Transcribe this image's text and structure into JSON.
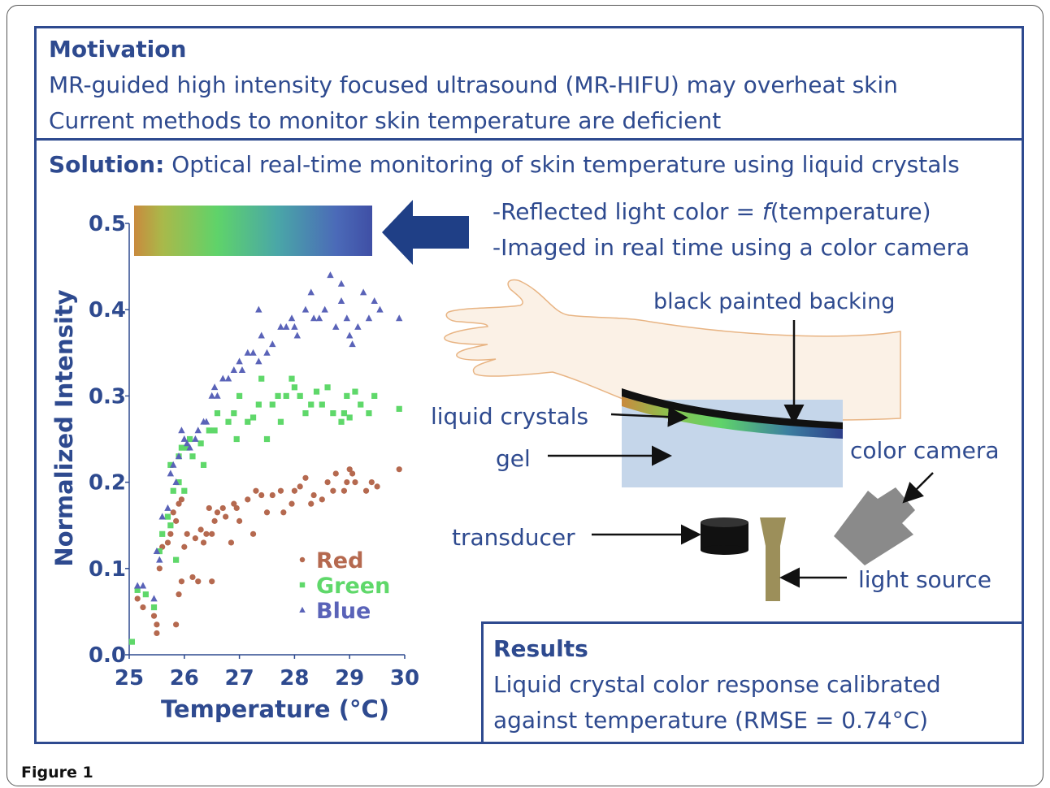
{
  "motivation": {
    "heading": "Motivation",
    "line1": "MR-guided high intensity focused ultrasound (MR-HIFU) may overheat skin",
    "line2": "Current methods to monitor skin temperature are deficient"
  },
  "solution": {
    "heading": "Solution:",
    "text": "Optical real-time monitoring of skin temperature using liquid crystals"
  },
  "bullets": {
    "b1_prefix": "-Reflected light color = ",
    "b1_f": "f",
    "b1_suffix": "(temperature)",
    "b2": "-Imaged in real time using a color camera"
  },
  "diagram": {
    "backing": "black painted backing",
    "liquid_crystals": "liquid crystals",
    "gel": "gel",
    "camera": "color camera",
    "transducer": "transducer",
    "light_source": "light source"
  },
  "results": {
    "heading": "Results",
    "line1": "Liquid crystal color response calibrated",
    "line2": "against temperature (RMSE = 0.74°C)"
  },
  "caption": "Figure 1",
  "colors": {
    "accent": "#2e4a8f",
    "red": "#b5694f",
    "green": "#5fd86a",
    "blue": "#5a63b8",
    "arrow": "#1f3f86"
  },
  "chart_data": {
    "type": "scatter",
    "xlabel": "Temperature (°C)",
    "ylabel": "Normalized Intensity",
    "xlim": [
      25,
      30
    ],
    "ylim": [
      0,
      0.5
    ],
    "xticks": [
      "25",
      "26",
      "27",
      "28",
      "29",
      "30"
    ],
    "yticks": [
      "0.0",
      "0.1",
      "0.2",
      "0.3",
      "0.4",
      "0.5"
    ],
    "legend_position": "lower-right",
    "series": [
      {
        "name": "Red",
        "marker": "circle",
        "points": [
          [
            25.05,
            0.015
          ],
          [
            25.15,
            0.065
          ],
          [
            25.25,
            0.055
          ],
          [
            25.45,
            0.045
          ],
          [
            25.5,
            0.025
          ],
          [
            25.5,
            0.035
          ],
          [
            25.55,
            0.1
          ],
          [
            25.6,
            0.125
          ],
          [
            25.7,
            0.13
          ],
          [
            25.75,
            0.14
          ],
          [
            25.8,
            0.165
          ],
          [
            25.85,
            0.155
          ],
          [
            25.85,
            0.035
          ],
          [
            25.9,
            0.175
          ],
          [
            25.9,
            0.07
          ],
          [
            25.95,
            0.18
          ],
          [
            25.95,
            0.085
          ],
          [
            26.0,
            0.125
          ],
          [
            26.05,
            0.14
          ],
          [
            26.15,
            0.09
          ],
          [
            26.2,
            0.135
          ],
          [
            26.25,
            0.085
          ],
          [
            26.3,
            0.145
          ],
          [
            26.35,
            0.13
          ],
          [
            26.4,
            0.14
          ],
          [
            26.45,
            0.17
          ],
          [
            26.5,
            0.085
          ],
          [
            26.5,
            0.14
          ],
          [
            26.55,
            0.155
          ],
          [
            26.6,
            0.165
          ],
          [
            26.7,
            0.17
          ],
          [
            26.75,
            0.16
          ],
          [
            26.85,
            0.13
          ],
          [
            26.9,
            0.175
          ],
          [
            26.95,
            0.17
          ],
          [
            27.0,
            0.155
          ],
          [
            27.15,
            0.18
          ],
          [
            27.25,
            0.14
          ],
          [
            27.3,
            0.19
          ],
          [
            27.4,
            0.185
          ],
          [
            27.5,
            0.165
          ],
          [
            27.6,
            0.185
          ],
          [
            27.75,
            0.19
          ],
          [
            27.8,
            0.165
          ],
          [
            27.95,
            0.175
          ],
          [
            28.0,
            0.19
          ],
          [
            28.1,
            0.195
          ],
          [
            28.2,
            0.205
          ],
          [
            28.3,
            0.175
          ],
          [
            28.35,
            0.185
          ],
          [
            28.5,
            0.18
          ],
          [
            28.6,
            0.2
          ],
          [
            28.7,
            0.19
          ],
          [
            28.75,
            0.21
          ],
          [
            28.9,
            0.19
          ],
          [
            28.95,
            0.2
          ],
          [
            29.0,
            0.215
          ],
          [
            29.05,
            0.21
          ],
          [
            29.1,
            0.2
          ],
          [
            29.3,
            0.19
          ],
          [
            29.4,
            0.2
          ],
          [
            29.5,
            0.195
          ],
          [
            29.9,
            0.215
          ]
        ]
      },
      {
        "name": "Green",
        "marker": "square",
        "points": [
          [
            25.05,
            0.015
          ],
          [
            25.15,
            0.075
          ],
          [
            25.3,
            0.07
          ],
          [
            25.45,
            0.055
          ],
          [
            25.55,
            0.12
          ],
          [
            25.6,
            0.14
          ],
          [
            25.7,
            0.16
          ],
          [
            25.75,
            0.15
          ],
          [
            25.75,
            0.22
          ],
          [
            25.8,
            0.19
          ],
          [
            25.85,
            0.11
          ],
          [
            25.9,
            0.2
          ],
          [
            25.9,
            0.23
          ],
          [
            25.95,
            0.24
          ],
          [
            26.0,
            0.19
          ],
          [
            26.05,
            0.24
          ],
          [
            26.1,
            0.25
          ],
          [
            26.15,
            0.23
          ],
          [
            26.3,
            0.245
          ],
          [
            26.35,
            0.22
          ],
          [
            26.45,
            0.26
          ],
          [
            26.55,
            0.26
          ],
          [
            26.6,
            0.28
          ],
          [
            26.8,
            0.27
          ],
          [
            26.9,
            0.28
          ],
          [
            26.95,
            0.25
          ],
          [
            27.0,
            0.3
          ],
          [
            27.15,
            0.27
          ],
          [
            27.25,
            0.275
          ],
          [
            27.35,
            0.29
          ],
          [
            27.4,
            0.32
          ],
          [
            27.5,
            0.25
          ],
          [
            27.6,
            0.29
          ],
          [
            27.7,
            0.3
          ],
          [
            27.75,
            0.27
          ],
          [
            27.85,
            0.3
          ],
          [
            27.95,
            0.32
          ],
          [
            28.0,
            0.31
          ],
          [
            28.1,
            0.3
          ],
          [
            28.2,
            0.28
          ],
          [
            28.3,
            0.29
          ],
          [
            28.4,
            0.305
          ],
          [
            28.5,
            0.29
          ],
          [
            28.6,
            0.31
          ],
          [
            28.7,
            0.28
          ],
          [
            28.85,
            0.27
          ],
          [
            28.9,
            0.28
          ],
          [
            28.95,
            0.3
          ],
          [
            29.0,
            0.275
          ],
          [
            29.1,
            0.305
          ],
          [
            29.2,
            0.29
          ],
          [
            29.35,
            0.28
          ],
          [
            29.45,
            0.3
          ],
          [
            29.9,
            0.285
          ]
        ]
      },
      {
        "name": "Blue",
        "marker": "triangle",
        "points": [
          [
            25.15,
            0.08
          ],
          [
            25.25,
            0.08
          ],
          [
            25.45,
            0.065
          ],
          [
            25.5,
            0.12
          ],
          [
            25.55,
            0.11
          ],
          [
            25.6,
            0.16
          ],
          [
            25.7,
            0.17
          ],
          [
            25.75,
            0.21
          ],
          [
            25.8,
            0.22
          ],
          [
            25.85,
            0.2
          ],
          [
            25.9,
            0.23
          ],
          [
            25.95,
            0.26
          ],
          [
            26.0,
            0.25
          ],
          [
            26.05,
            0.245
          ],
          [
            26.1,
            0.24
          ],
          [
            26.2,
            0.25
          ],
          [
            26.25,
            0.26
          ],
          [
            26.35,
            0.27
          ],
          [
            26.4,
            0.27
          ],
          [
            26.5,
            0.3
          ],
          [
            26.55,
            0.31
          ],
          [
            26.6,
            0.3
          ],
          [
            26.7,
            0.32
          ],
          [
            26.8,
            0.32
          ],
          [
            26.9,
            0.33
          ],
          [
            27.0,
            0.34
          ],
          [
            27.05,
            0.33
          ],
          [
            27.15,
            0.35
          ],
          [
            27.25,
            0.35
          ],
          [
            27.35,
            0.34
          ],
          [
            27.4,
            0.37
          ],
          [
            27.5,
            0.35
          ],
          [
            27.6,
            0.36
          ],
          [
            27.75,
            0.38
          ],
          [
            27.85,
            0.38
          ],
          [
            27.95,
            0.39
          ],
          [
            28.0,
            0.38
          ],
          [
            28.05,
            0.37
          ],
          [
            28.2,
            0.4
          ],
          [
            28.3,
            0.42
          ],
          [
            28.35,
            0.39
          ],
          [
            28.45,
            0.39
          ],
          [
            28.55,
            0.4
          ],
          [
            28.65,
            0.44
          ],
          [
            28.75,
            0.38
          ],
          [
            28.85,
            0.41
          ],
          [
            28.95,
            0.39
          ],
          [
            29.0,
            0.37
          ],
          [
            29.05,
            0.36
          ],
          [
            29.15,
            0.38
          ],
          [
            29.25,
            0.42
          ],
          [
            29.35,
            0.39
          ],
          [
            29.45,
            0.41
          ],
          [
            29.55,
            0.4
          ],
          [
            29.9,
            0.39
          ],
          [
            27.35,
            0.4
          ],
          [
            28.85,
            0.43
          ]
        ]
      }
    ]
  }
}
